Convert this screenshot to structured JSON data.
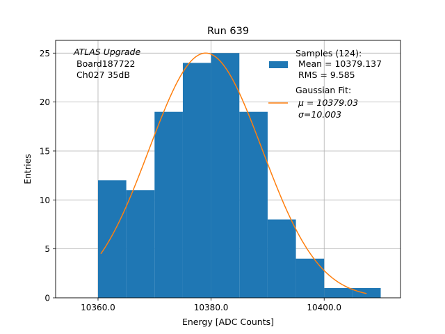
{
  "chart_data": {
    "type": "bar",
    "title": "Run 639",
    "xlabel": "Energy [ADC Counts]",
    "ylabel": "Entries",
    "xlim": [
      10352.5,
      10413.5
    ],
    "ylim": [
      0,
      26.3
    ],
    "xticks": [
      10360,
      10380,
      10400
    ],
    "xtick_labels": [
      "10360.0",
      "10380.0",
      "10400.0"
    ],
    "yticks": [
      0,
      5,
      10,
      15,
      20,
      25
    ],
    "ytick_labels": [
      "0",
      "5",
      "10",
      "15",
      "20",
      "25"
    ],
    "grid": true,
    "bin_edges": [
      10360,
      10365,
      10370,
      10375,
      10380,
      10385,
      10390,
      10395,
      10400,
      10405,
      10410
    ],
    "series": [
      {
        "name": "Samples (124):",
        "kind": "histogram",
        "color": "#1f77b4",
        "values": [
          12,
          11,
          19,
          24,
          25,
          19,
          8,
          4,
          1,
          1
        ]
      },
      {
        "name": "Gaussian Fit:",
        "kind": "line",
        "color": "#ff7f0e",
        "mu": 10379.03,
        "sigma": 10.003,
        "amplitude": 25,
        "x_range": [
          10360.5,
          10407.5
        ]
      }
    ],
    "annotation_lines": [
      "ATLAS Upgrade",
      "Board187722",
      "Ch027 35dB"
    ],
    "legend": {
      "position": "top-right",
      "hist_lines": [
        "Samples (124):",
        "Mean = 10379.137",
        "RMS = 9.585"
      ],
      "fit_lines": [
        "Gaussian Fit:",
        "μ = 10379.03",
        "σ=10.003"
      ]
    }
  }
}
